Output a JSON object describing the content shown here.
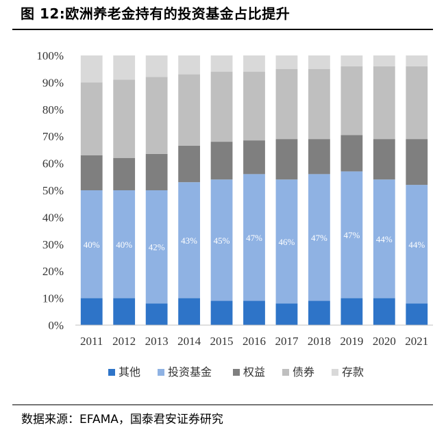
{
  "header": {
    "title": "图 12:欧洲养老金持有的投资基金占比提升"
  },
  "footer": {
    "source": "数据来源：EFAMA，国泰君安证券研究"
  },
  "chart_data": {
    "type": "bar",
    "stacked": true,
    "title": "欧洲养老金持有的投资基金占比提升",
    "xlabel": "",
    "ylabel": "",
    "ylim": [
      0,
      100
    ],
    "yticks": [
      "0%",
      "10%",
      "20%",
      "30%",
      "40%",
      "50%",
      "60%",
      "70%",
      "80%",
      "90%",
      "100%"
    ],
    "categories": [
      "2011",
      "2012",
      "2013",
      "2014",
      "2015",
      "2016",
      "2017",
      "2018",
      "2019",
      "2020",
      "2021"
    ],
    "series": [
      {
        "name": "其他",
        "color": "#2E74C8",
        "values": [
          10,
          10,
          8,
          10,
          9,
          9,
          8,
          9,
          10,
          10,
          8
        ]
      },
      {
        "name": "投资基金",
        "color": "#8FB2E3",
        "values": [
          40,
          40,
          42,
          43,
          45,
          47,
          46,
          47,
          47,
          44,
          44
        ],
        "labels": [
          "40%",
          "40%",
          "42%",
          "43%",
          "45%",
          "47%",
          "46%",
          "47%",
          "47%",
          "44%",
          "44%"
        ]
      },
      {
        "name": "权益",
        "color": "#7F7F7F",
        "values": [
          13,
          12,
          13.5,
          13.5,
          14,
          12.5,
          15,
          13,
          13.5,
          15,
          17
        ]
      },
      {
        "name": "债券",
        "color": "#BFBFBF",
        "values": [
          27,
          29,
          28.5,
          26.5,
          26,
          25.5,
          26,
          26,
          25.5,
          27,
          27
        ]
      },
      {
        "name": "存款",
        "color": "#D9D9D9",
        "values": [
          10,
          9,
          8,
          7,
          6,
          6,
          5,
          5,
          4,
          4,
          4
        ]
      }
    ],
    "legend_position": "bottom",
    "grid": false
  }
}
